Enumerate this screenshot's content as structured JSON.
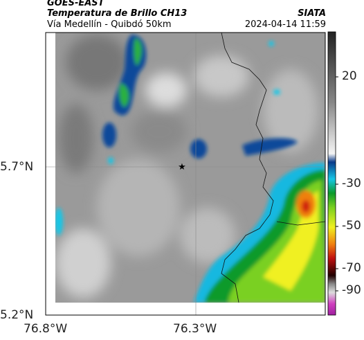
{
  "header": {
    "source": "GOES-EAST",
    "title": "Temperatura de Brillo CH13",
    "subtitle": "Vía Medellín - Quibdó 50km",
    "agency": "SIATA",
    "timestamp": "2024-04-14 11:59"
  },
  "map": {
    "lat_labels": [
      "5.7°N",
      "5.2°N"
    ],
    "lon_labels": [
      "76.8°W",
      "76.3°W"
    ]
  },
  "colorbar": {
    "tick_labels": [
      "20",
      "-30",
      "-50",
      "-70",
      "-90"
    ]
  }
}
